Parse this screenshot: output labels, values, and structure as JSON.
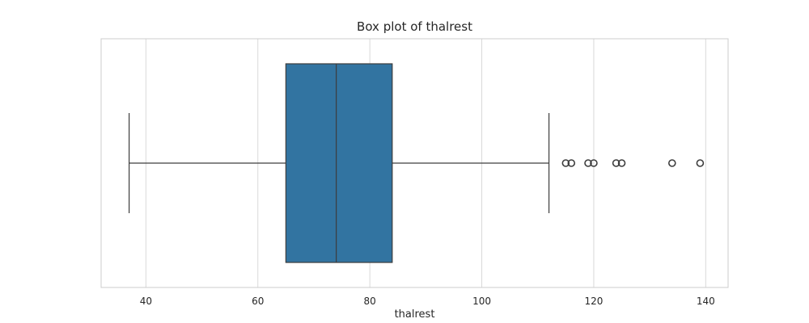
{
  "chart_data": {
    "type": "box",
    "title": "Box plot of thalrest",
    "xlabel": "thalrest",
    "ylabel": "",
    "xlim": [
      32,
      144
    ],
    "xticks": [
      40,
      60,
      80,
      100,
      120,
      140
    ],
    "grid": true,
    "orientation": "horizontal",
    "box": {
      "whisker_low": 37,
      "q1": 65,
      "median": 74,
      "q3": 84,
      "whisker_high": 112,
      "outliers": [
        115,
        116,
        119,
        120,
        124,
        125,
        134,
        139
      ]
    },
    "colors": {
      "box_fill": "#3274a1",
      "line": "#3d3d3d",
      "grid": "#d9d9d9",
      "spine": "#cccccc"
    }
  }
}
